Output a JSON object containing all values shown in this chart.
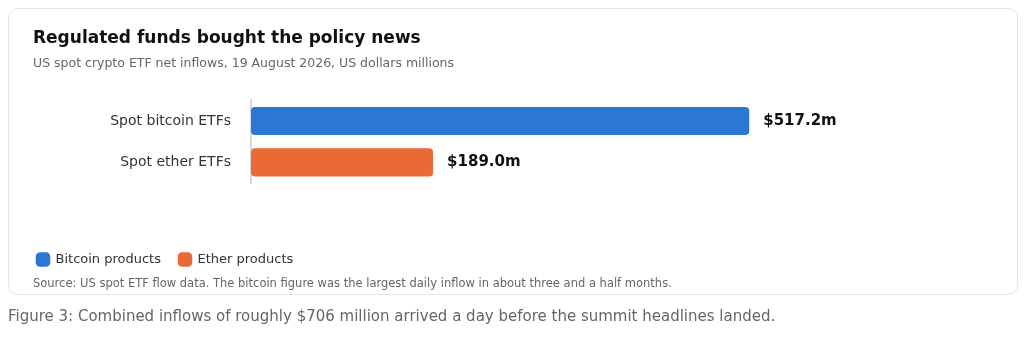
{
  "chart_data": {
    "type": "bar",
    "orientation": "horizontal",
    "stacked": true,
    "legend": "bottom left",
    "title": "Regulated funds bought the policy news",
    "subtitle": "US spot crypto ETF net inflows, 19 August 2026, US dollars millions",
    "categories": [
      "Spot bitcoin ETFs",
      "Spot ether ETFs"
    ],
    "series": [
      {
        "name": "Bitcoin products",
        "color": "#2b78d4",
        "values": [
          517.2,
          null
        ],
        "value_labels": [
          "$517.2m",
          null
        ]
      },
      {
        "name": "Ether products",
        "color": "#e96a35",
        "values": [
          null,
          189.0
        ],
        "value_labels": [
          null,
          "$189.0m"
        ]
      }
    ],
    "annotations": [
      "Source: US spot ETF flow data. The bitcoin figure was the largest daily inflow in about three and a half months.",
      "Figure 3: Combined inflows of roughly $706 million arrived a day before the summit headlines landed."
    ]
  }
}
